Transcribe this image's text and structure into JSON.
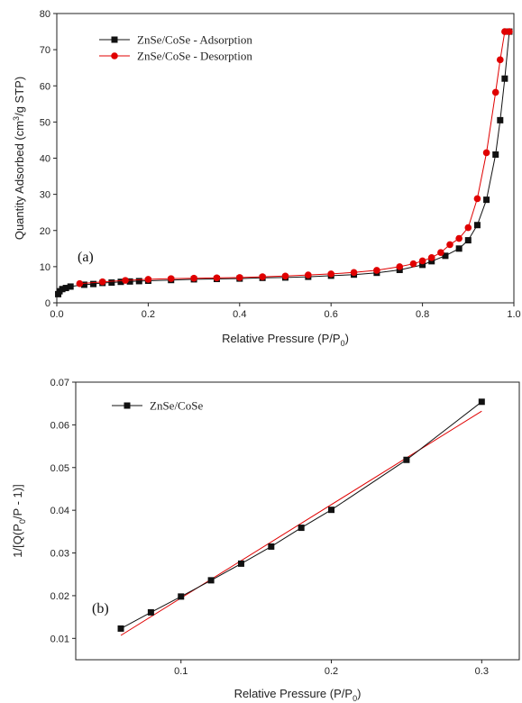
{
  "chart_data": [
    {
      "type": "scatter",
      "panel_label": "(a)",
      "xlabel": "Relative Pressure (P/P",
      "xlabel_sub": "0",
      "xlabel_end": ")",
      "ylabel": "Quantity Adsorbed (cm",
      "ylabel_sup": "3",
      "ylabel_end": "/g STP)",
      "xlim": [
        0,
        1.0
      ],
      "ylim": [
        0,
        80
      ],
      "xticks": [
        0.0,
        0.2,
        0.4,
        0.6,
        0.8,
        1.0
      ],
      "xtick_labels": [
        "0.0",
        "0.2",
        "0.4",
        "0.6",
        "0.8",
        "1.0"
      ],
      "yticks": [
        0,
        10,
        20,
        30,
        40,
        50,
        60,
        70,
        80
      ],
      "ytick_labels": [
        "0",
        "10",
        "20",
        "30",
        "40",
        "50",
        "60",
        "70",
        "80"
      ],
      "grid": false,
      "legend_position": "top-left",
      "series": [
        {
          "name": "ZnSe/CoSe - Adsorption",
          "color": "#111111",
          "marker": "square",
          "x": [
            0.003,
            0.006,
            0.012,
            0.02,
            0.03,
            0.06,
            0.08,
            0.1,
            0.12,
            0.14,
            0.16,
            0.18,
            0.2,
            0.25,
            0.3,
            0.35,
            0.4,
            0.45,
            0.5,
            0.55,
            0.6,
            0.65,
            0.7,
            0.75,
            0.8,
            0.82,
            0.85,
            0.88,
            0.9,
            0.92,
            0.94,
            0.96,
            0.97,
            0.98,
            0.99
          ],
          "y": [
            2.4,
            3.2,
            3.8,
            4.1,
            4.5,
            5.0,
            5.2,
            5.5,
            5.6,
            5.8,
            5.9,
            6.0,
            6.1,
            6.3,
            6.5,
            6.6,
            6.7,
            6.9,
            7.0,
            7.2,
            7.5,
            7.8,
            8.3,
            9.1,
            10.5,
            11.5,
            13.0,
            15.0,
            17.3,
            21.5,
            28.5,
            41.0,
            50.5,
            62.0,
            75.0
          ]
        },
        {
          "name": "ZnSe/CoSe - Desorption",
          "color": "#e00000",
          "marker": "circle",
          "x": [
            0.05,
            0.1,
            0.15,
            0.2,
            0.25,
            0.3,
            0.35,
            0.4,
            0.45,
            0.5,
            0.55,
            0.6,
            0.65,
            0.7,
            0.75,
            0.78,
            0.8,
            0.82,
            0.84,
            0.86,
            0.88,
            0.9,
            0.92,
            0.94,
            0.96,
            0.97,
            0.98,
            0.99
          ],
          "y": [
            5.3,
            5.8,
            6.2,
            6.5,
            6.7,
            6.8,
            6.9,
            7.0,
            7.2,
            7.4,
            7.7,
            8.0,
            8.4,
            9.0,
            10.0,
            10.8,
            11.6,
            12.5,
            13.9,
            16.1,
            17.8,
            20.8,
            28.8,
            41.5,
            58.2,
            67.2,
            75.0,
            75.0
          ]
        }
      ]
    },
    {
      "type": "scatter",
      "panel_label": "(b)",
      "xlabel": "Relative Pressure (P/P",
      "xlabel_sub": "0",
      "xlabel_end": ")",
      "ylabel": "1/[Q(P",
      "ylabel_sub": "0",
      "ylabel_end": "/P - 1)]",
      "xlim": [
        0.03,
        0.325
      ],
      "ylim": [
        0.005,
        0.07
      ],
      "xticks": [
        0.1,
        0.2,
        0.3
      ],
      "xtick_labels": [
        "0.1",
        "0.2",
        "0.3"
      ],
      "yticks": [
        0.01,
        0.02,
        0.03,
        0.04,
        0.05,
        0.06,
        0.07
      ],
      "ytick_labels": [
        "0.01",
        "0.02",
        "0.03",
        "0.04",
        "0.05",
        "0.06",
        "0.07"
      ],
      "grid": false,
      "legend_position": "top-left",
      "series": [
        {
          "name": "ZnSe/CoSe",
          "color": "#111111",
          "marker": "square",
          "x": [
            0.06,
            0.08,
            0.1,
            0.12,
            0.14,
            0.16,
            0.18,
            0.2,
            0.25,
            0.3
          ],
          "y": [
            0.0123,
            0.0161,
            0.0198,
            0.0236,
            0.0275,
            0.0315,
            0.0359,
            0.0401,
            0.0518,
            0.0654
          ]
        }
      ],
      "fit_line": {
        "color": "#e00000",
        "x": [
          0.06,
          0.3
        ],
        "y": [
          0.0107,
          0.0632
        ]
      }
    }
  ]
}
